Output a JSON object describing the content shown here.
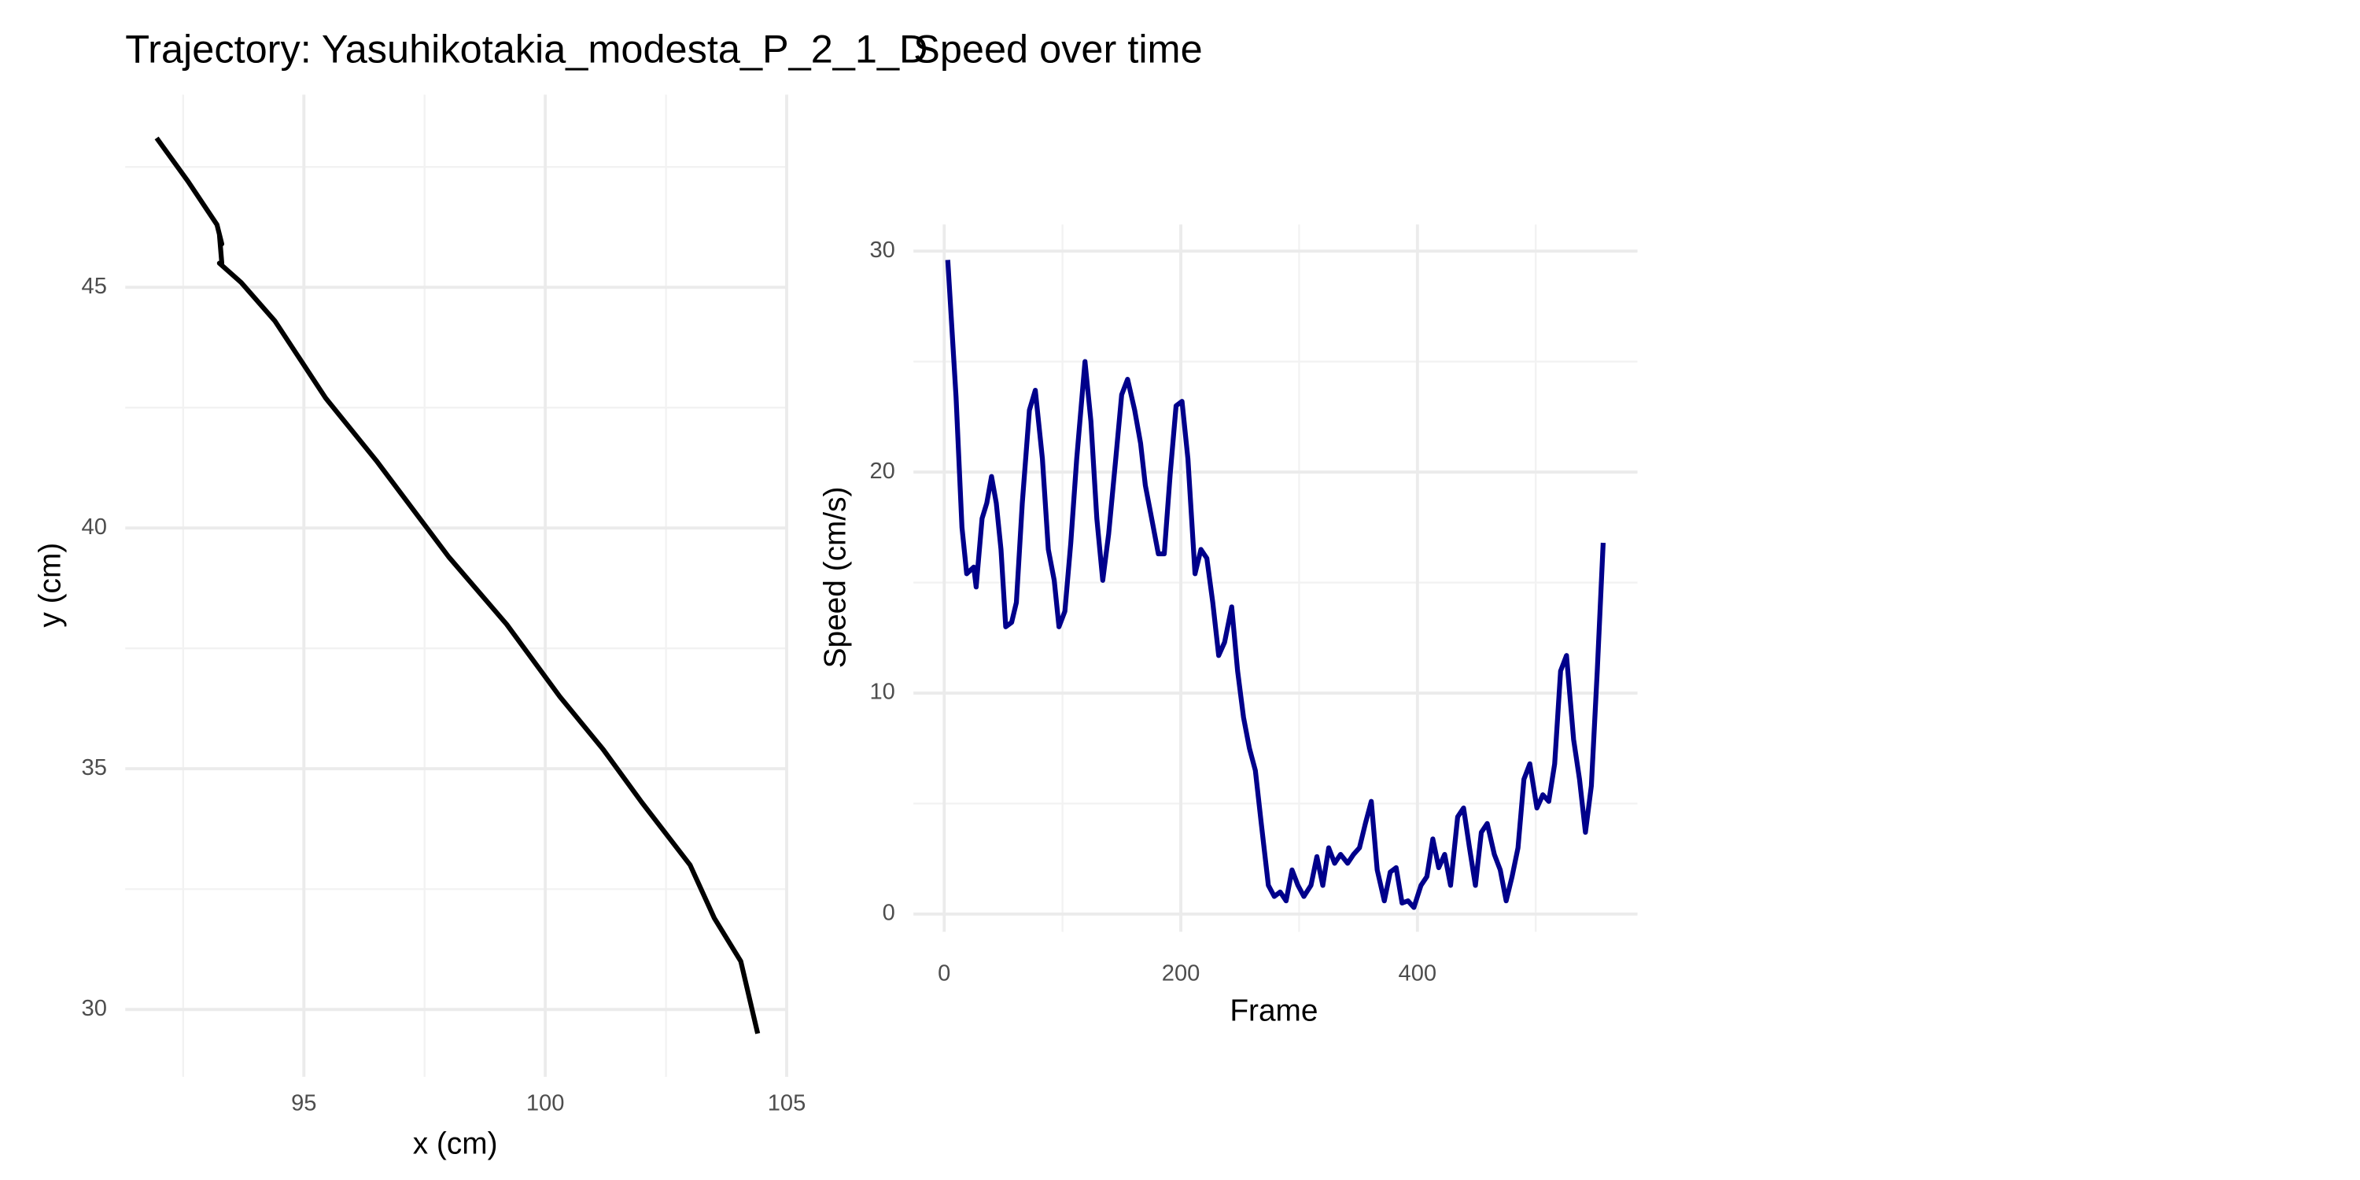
{
  "chart_data": [
    {
      "type": "line",
      "title": "Trajectory: Yasuhikotakia_modesta_P_2_1_D",
      "xlabel": "x (cm)",
      "ylabel": "y (cm)",
      "color": "#000000",
      "grid": true,
      "xlim": [
        91.3,
        105.0
      ],
      "ylim": [
        28.6,
        49.0
      ],
      "xticks": [
        95,
        100,
        105
      ],
      "yticks": [
        30,
        35,
        40,
        45
      ],
      "xminor": [
        92.5,
        97.5,
        102.5
      ],
      "yminor": [
        32.5,
        37.5,
        42.5,
        47.5
      ],
      "x": [
        91.95,
        92.6,
        93.2,
        93.3,
        93.25,
        93.3,
        93.25,
        93.7,
        94.4,
        95.45,
        96.5,
        97.25,
        98.0,
        99.2,
        100.3,
        101.2,
        102.0,
        103.0,
        103.5,
        104.05,
        104.4
      ],
      "values": [
        48.1,
        47.2,
        46.3,
        45.9,
        46.1,
        45.5,
        45.5,
        45.1,
        44.3,
        42.7,
        41.4,
        40.4,
        39.4,
        38.0,
        36.5,
        35.4,
        34.3,
        33.0,
        31.9,
        31.0,
        29.5
      ]
    },
    {
      "type": "line",
      "title": "Speed over time",
      "xlabel": "Frame",
      "ylabel": "Speed (cm/s)",
      "color": "#00008b",
      "grid": true,
      "xlim": [
        -26,
        586
      ],
      "ylim": [
        -0.8,
        31.2
      ],
      "xticks": [
        0,
        200,
        400
      ],
      "yticks": [
        0,
        10,
        20,
        30
      ],
      "xminor": [
        100,
        300,
        500
      ],
      "yminor": [
        5,
        15,
        25
      ],
      "x": [
        3,
        10,
        15,
        19,
        25,
        27,
        32,
        36,
        40,
        44,
        48,
        52,
        57,
        61,
        66,
        72,
        77,
        83,
        88,
        93,
        97,
        102,
        107,
        112,
        119,
        124,
        129,
        134,
        139,
        145,
        150,
        155,
        161,
        166,
        170,
        175,
        181,
        186,
        191,
        196,
        201,
        206,
        212,
        217,
        222,
        227,
        232,
        237,
        243,
        248,
        253,
        258,
        263,
        268,
        274,
        279,
        284,
        289,
        294,
        299,
        304,
        310,
        315,
        320,
        325,
        330,
        335,
        341,
        346,
        351,
        356,
        361,
        366,
        372,
        377,
        382,
        387,
        392,
        397,
        403,
        408,
        413,
        418,
        423,
        428,
        434,
        439,
        444,
        449,
        454,
        459,
        465,
        470,
        475,
        480,
        485,
        490,
        495,
        501,
        506,
        511,
        516,
        521,
        526,
        532,
        537,
        542,
        547,
        552,
        557
      ],
      "values": [
        29.6,
        23.4,
        17.5,
        15.4,
        15.7,
        14.8,
        17.9,
        18.6,
        19.8,
        18.6,
        16.5,
        13.0,
        13.2,
        14.1,
        18.6,
        22.8,
        23.7,
        20.6,
        16.5,
        15.1,
        13.0,
        13.7,
        16.8,
        20.6,
        25.0,
        22.3,
        17.9,
        15.1,
        17.2,
        20.6,
        23.5,
        24.2,
        22.8,
        21.3,
        19.4,
        18.0,
        16.3,
        16.3,
        19.9,
        23.0,
        23.2,
        20.6,
        15.4,
        16.5,
        16.1,
        14.1,
        11.7,
        12.3,
        13.9,
        11.0,
        8.9,
        7.5,
        6.5,
        4.1,
        1.3,
        0.8,
        1.0,
        0.6,
        2.0,
        1.3,
        0.8,
        1.3,
        2.6,
        1.3,
        3.0,
        2.3,
        2.7,
        2.3,
        2.7,
        3.0,
        4.1,
        5.1,
        2.0,
        0.6,
        1.9,
        2.1,
        0.5,
        0.6,
        0.3,
        1.3,
        1.7,
        3.4,
        2.1,
        2.7,
        1.3,
        4.4,
        4.8,
        3.0,
        1.3,
        3.7,
        4.1,
        2.7,
        2.0,
        0.6,
        1.7,
        3.0,
        6.1,
        6.8,
        4.8,
        5.4,
        5.1,
        6.8,
        11.0,
        11.7,
        7.9,
        6.1,
        3.7,
        5.8,
        11.0,
        16.8
      ]
    }
  ]
}
